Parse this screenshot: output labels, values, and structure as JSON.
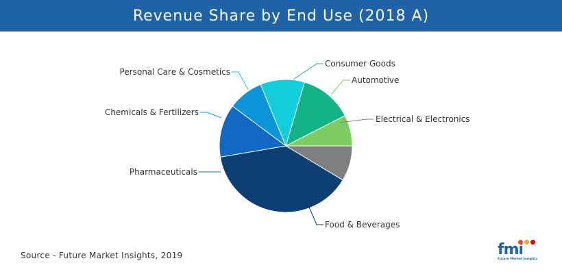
{
  "header": {
    "title": "Revenue Share by End Use (2018 A)",
    "background": "#1f62a8"
  },
  "chart_data": {
    "type": "pie",
    "title": "Revenue Share by End Use (2018 A)",
    "slices": [
      {
        "label": "Electrical & Electronics",
        "value": 8,
        "color": "#7f7f7f"
      },
      {
        "label": "Food & Beverages",
        "value": 36,
        "color": "#0d3f75"
      },
      {
        "label": "Pharmaceuticals",
        "value": 12,
        "color": "#1169c4"
      },
      {
        "label": "Chemicals & Fertilizers",
        "value": 8,
        "color": "#0d95da"
      },
      {
        "label": "Personal Care & Cosmetics",
        "value": 10,
        "color": "#12cedb"
      },
      {
        "label": "Consumer Goods",
        "value": 12,
        "color": "#12b386"
      },
      {
        "label": "Automotive",
        "value": 7,
        "color": "#7dcd63"
      }
    ],
    "legend": "none",
    "start_angle_deg": 0,
    "direction": "clockwise"
  },
  "footer": {
    "source": "Source - Future Market Insights, 2019",
    "logo_text": "fmi",
    "logo_subtext": "Future Market Insights"
  }
}
